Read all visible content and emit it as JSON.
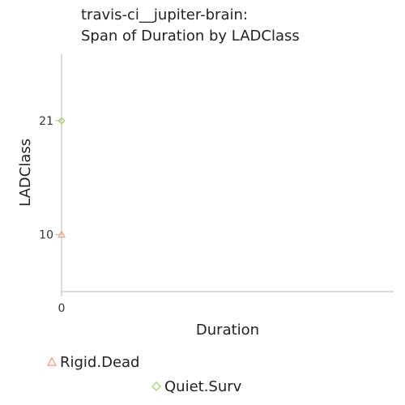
{
  "chart_data": {
    "type": "scatter",
    "title_lines": [
      "travis-ci__jupiter-brain:",
      "Span of Duration by LADClass"
    ],
    "xlabel": "Duration",
    "ylabel": "LADClass",
    "x_ticks": [
      0
    ],
    "y_ticks": [
      10,
      21
    ],
    "xlim": [
      0,
      1
    ],
    "ylim": [
      4.5,
      27.5
    ],
    "grid": false,
    "legend_position": "bottom",
    "series": [
      {
        "name": "Rigid.Dead",
        "marker": "triangle",
        "color": "#f4a582",
        "points": [
          {
            "x": 0,
            "y": 10
          }
        ]
      },
      {
        "name": "Quiet.Surv",
        "marker": "diamond",
        "color": "#a6d96a",
        "points": [
          {
            "x": 0,
            "y": 21
          }
        ]
      }
    ],
    "axis_color": "#bbbbbb"
  }
}
